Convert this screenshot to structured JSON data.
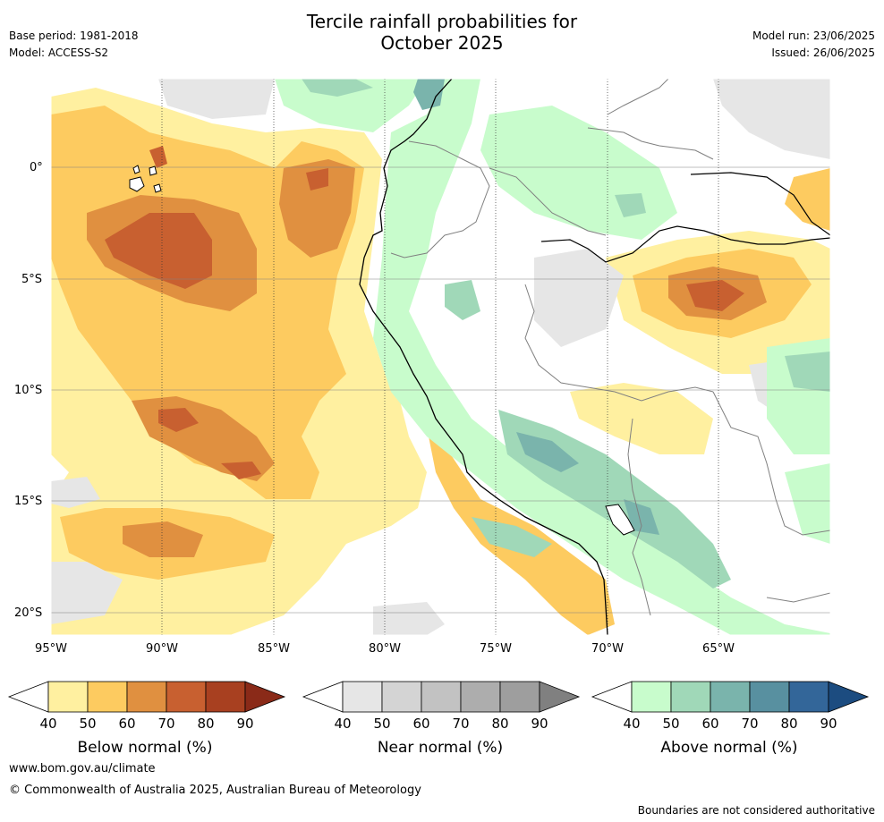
{
  "header": {
    "title_line1": "Tercile rainfall probabilities for",
    "title_line2": "October 2025",
    "base_period": "Base period: 1981-2018",
    "model": "Model: ACCESS-S2",
    "model_run": "Model run: 23/06/2025",
    "issued": "Issued: 26/06/2025"
  },
  "map": {
    "lat_labels": [
      "0°",
      "5°S",
      "10°S",
      "15°S",
      "20°S"
    ],
    "lon_labels": [
      "95°W",
      "90°W",
      "85°W",
      "80°W",
      "75°W",
      "70°W",
      "65°W"
    ],
    "colors": {
      "below": [
        "#fff0a0",
        "#fdcb60",
        "#e09040",
        "#c86030",
        "#a84020",
        "#8a2a18"
      ],
      "near": [
        "#e6e6e6",
        "#d4d4d4",
        "#c2c2c2",
        "#adadad",
        "#8a8a8a"
      ],
      "above": [
        "#c8fccc",
        "#a0d8b8",
        "#7ab4ac",
        "#5890a0",
        "#3a6898",
        "#204e80"
      ],
      "coast": "#000000",
      "border": "#808080",
      "grid": "#808080"
    }
  },
  "legends": [
    {
      "title": "Below normal (%)",
      "ticks": [
        "40",
        "50",
        "60",
        "70",
        "80",
        "90"
      ],
      "colors": [
        "#fff0a0",
        "#fdcb60",
        "#e09040",
        "#c86030",
        "#a84020"
      ],
      "extend_color": "#8a2a18"
    },
    {
      "title": "Near normal (%)",
      "ticks": [
        "40",
        "50",
        "60",
        "70",
        "80",
        "90"
      ],
      "colors": [
        "#e6e6e6",
        "#d4d4d4",
        "#c2c2c2",
        "#adadad",
        "#9e9e9e"
      ],
      "extend_color": "#808080"
    },
    {
      "title": "Above normal (%)",
      "ticks": [
        "40",
        "50",
        "60",
        "70",
        "80",
        "90"
      ],
      "colors": [
        "#c8fccc",
        "#a0d8b8",
        "#7ab4ac",
        "#5890a0",
        "#336699"
      ],
      "extend_color": "#1c4c80"
    }
  ],
  "footer": {
    "website": "www.bom.gov.au/climate",
    "copyright": "© Commonwealth of Australia 2025, Australian Bureau of Meteorology",
    "disclaimer": "Boundaries are not considered authoritative"
  }
}
